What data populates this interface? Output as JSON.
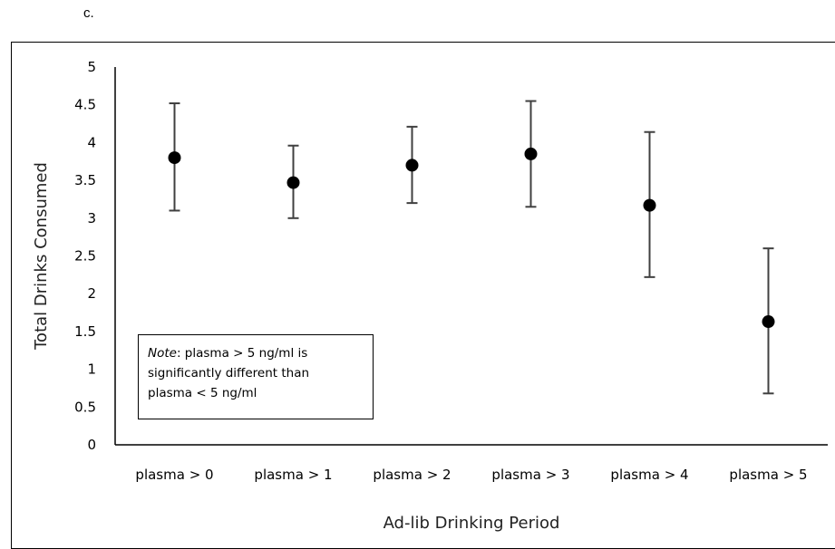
{
  "panel_label": "c.",
  "note": {
    "prefix": "Note",
    "text_line1": ": plasma > 5 ng/ml is",
    "text_line2": "significantly different than",
    "text_line3": "plasma < 5 ng/ml"
  },
  "chart_data": {
    "type": "scatter",
    "categories": [
      "plasma > 0",
      "plasma > 1",
      "plasma > 2",
      "plasma > 3",
      "plasma > 4",
      "plasma > 5"
    ],
    "values": [
      3.8,
      3.47,
      3.7,
      3.85,
      3.17,
      1.63
    ],
    "error_low": [
      3.1,
      3.0,
      3.2,
      3.15,
      2.22,
      0.68
    ],
    "error_high": [
      4.52,
      3.96,
      4.21,
      4.55,
      4.14,
      2.6
    ],
    "xlabel": "Ad-lib Drinking Period",
    "ylabel": "Total Drinks Consumed",
    "ylim": [
      0,
      5
    ],
    "yticks": [
      "0",
      "0.5",
      "1",
      "1.5",
      "2",
      "2.5",
      "3",
      "3.5",
      "4",
      "4.5",
      "5"
    ],
    "grid": false,
    "colors": {
      "marker": "#000000",
      "error_bar": "#404040",
      "axis": "#000000"
    }
  }
}
